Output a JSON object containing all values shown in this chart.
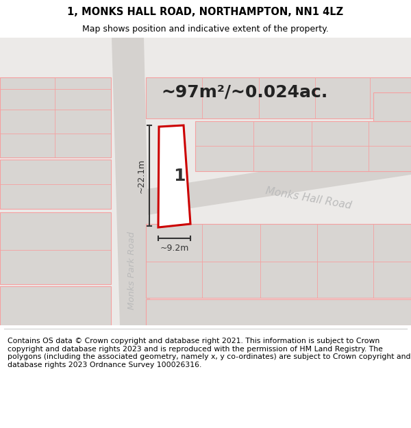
{
  "title": "1, MONKS HALL ROAD, NORTHAMPTON, NN1 4LZ",
  "subtitle": "Map shows position and indicative extent of the property.",
  "area_text": "~97m²/~0.024ac.",
  "dim_vertical": "~22.1m",
  "dim_horizontal": "~9.2m",
  "road_label_diagonal": "Monks Hall Road",
  "road_label_vertical": "Monks Park Road",
  "plot_number": "1",
  "footer": "Contains OS data © Crown copyright and database right 2021. This information is subject to Crown copyright and database rights 2023 and is reproduced with the permission of HM Land Registry. The polygons (including the associated geometry, namely x, y co-ordinates) are subject to Crown copyright and database rights 2023 Ordnance Survey 100026316.",
  "C_bg": "#eceae8",
  "C_road": "#d5d2cf",
  "C_building": "#d8d5d2",
  "C_plot_outline": "#cc0000",
  "C_plot_fill": "#ffffff",
  "C_outline": "#f5a0a0",
  "C_dim": "#333333",
  "footer_fontsize": 7.8,
  "title_fontsize": 10.5,
  "subtitle_fontsize": 9.0,
  "area_fontsize": 18,
  "plot_label_fontsize": 18,
  "road_label_fontsize": 11,
  "dim_fontsize": 9
}
